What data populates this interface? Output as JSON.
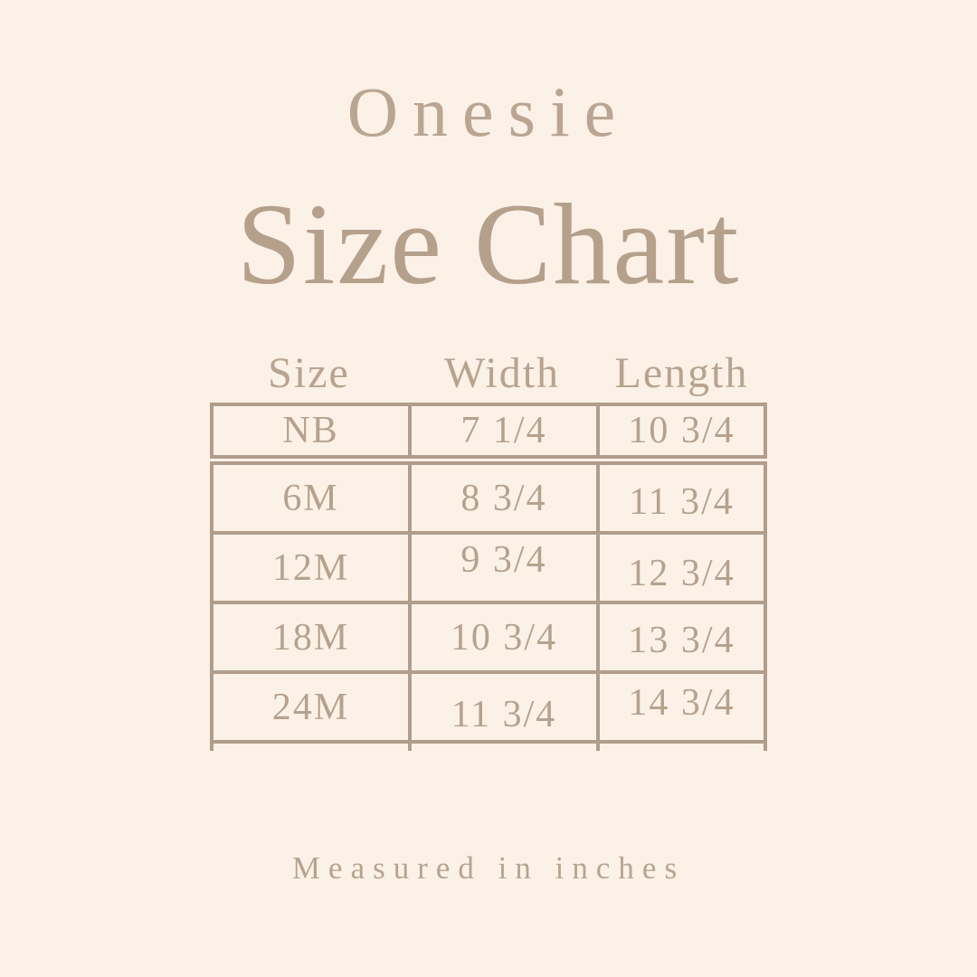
{
  "colors": {
    "background": "#fcf1e7",
    "text": "#b5a28e",
    "border": "#b09d8c"
  },
  "title": {
    "eyebrow": "Onesie",
    "main": "Size Chart"
  },
  "footer": {
    "note": "Measured in inches"
  },
  "chart_data": {
    "type": "table",
    "title": "Onesie Size Chart",
    "units": "inches",
    "columns": [
      "Size",
      "Width",
      "Length"
    ],
    "rows": [
      {
        "size": "NB",
        "width": "7 1/4",
        "length": "10 3/4"
      },
      {
        "size": "6M",
        "width": "8 3/4",
        "length": "11 3/4"
      },
      {
        "size": "12M",
        "width": "9 3/4",
        "length": "12 3/4"
      },
      {
        "size": "18M",
        "width": "10 3/4",
        "length": "13 3/4"
      },
      {
        "size": "24M",
        "width": "11 3/4",
        "length": "14 3/4"
      }
    ]
  }
}
